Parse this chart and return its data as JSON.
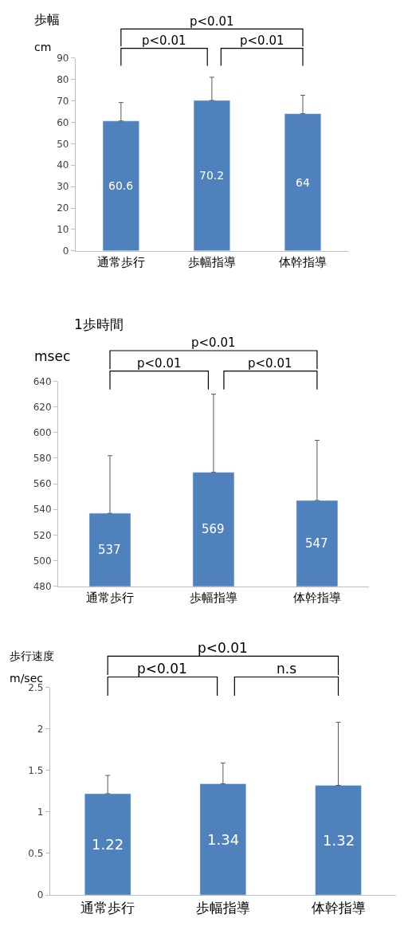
{
  "chart_data": [
    {
      "type": "bar",
      "title": "歩幅",
      "ylabel": "cm",
      "categories": [
        "通常歩行",
        "歩幅指導",
        "体幹指導"
      ],
      "series": [
        {
          "color": "#4f81bd",
          "values": [
            60.6,
            70.2,
            64
          ],
          "errors": [
            [
              60.6,
              69.2
            ],
            [
              70.2,
              81
            ],
            [
              64,
              72.6
            ]
          ]
        }
      ],
      "ylim": [
        0,
        90
      ],
      "yticks": [
        0,
        10,
        20,
        30,
        40,
        50,
        60,
        70,
        80,
        90
      ],
      "data_labels": true,
      "annotations": [
        "p<0.01",
        "p<0.01",
        "p<0.01"
      ]
    },
    {
      "type": "bar",
      "title": "1歩時間",
      "ylabel": "msec",
      "categories": [
        "通常歩行",
        "歩幅指導",
        "体幹指導"
      ],
      "series": [
        {
          "color": "#4f81bd",
          "values": [
            537,
            569,
            547
          ],
          "errors": [
            [
              537,
              582
            ],
            [
              569,
              630
            ],
            [
              547,
              594
            ]
          ]
        }
      ],
      "ylim": [
        480,
        640
      ],
      "yticks": [
        480,
        500,
        520,
        540,
        560,
        580,
        600,
        620,
        640
      ],
      "data_labels": true,
      "annotations": [
        "p<0.01",
        "p<0.01",
        "p<0.01"
      ]
    },
    {
      "type": "bar",
      "title": "歩行速度",
      "ylabel": "m/sec",
      "categories": [
        "通常歩行",
        "歩幅指導",
        "体幹指導"
      ],
      "series": [
        {
          "color": "#4f81bd",
          "values": [
            1.22,
            1.34,
            1.32
          ],
          "errors": [
            [
              1.22,
              1.44
            ],
            [
              1.34,
              1.59
            ],
            [
              1.32,
              2.08
            ]
          ]
        }
      ],
      "ylim": [
        0,
        2.5
      ],
      "yticks": [
        0,
        0.5,
        1,
        1.5,
        2,
        2.5
      ],
      "data_labels": true,
      "annotations": [
        "p<0.01",
        "p<0.01",
        "n.s"
      ]
    }
  ]
}
